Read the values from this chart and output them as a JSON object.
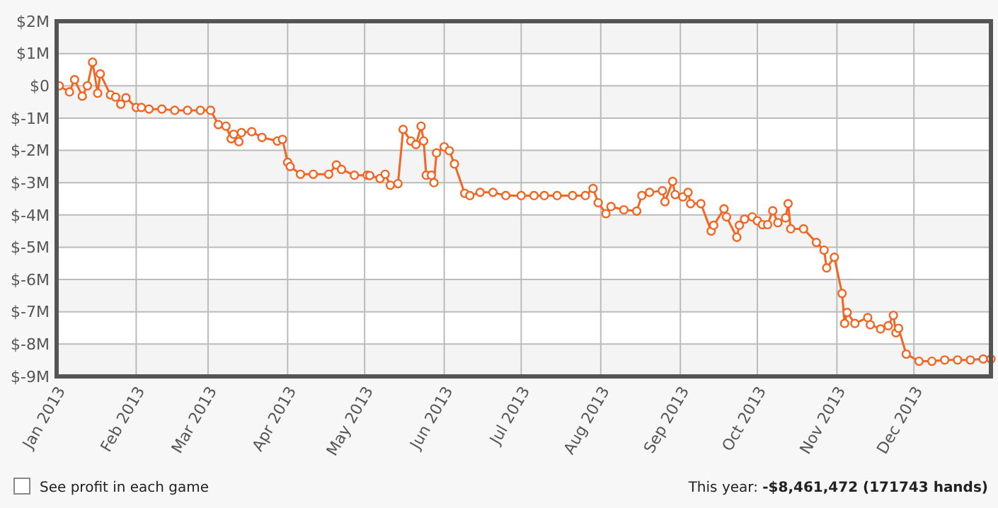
{
  "chart_data": {
    "type": "line",
    "x": [
      "2013-01-02",
      "2013-01-06",
      "2013-01-08",
      "2013-01-11",
      "2013-01-13",
      "2013-01-15",
      "2013-01-17",
      "2013-01-18",
      "2013-01-22",
      "2013-01-24",
      "2013-01-26",
      "2013-01-28",
      "2013-02-01",
      "2013-02-03",
      "2013-02-06",
      "2013-02-11",
      "2013-02-16",
      "2013-02-21",
      "2013-02-26",
      "2013-03-02",
      "2013-03-05",
      "2013-03-08",
      "2013-03-10",
      "2013-03-11",
      "2013-03-13",
      "2013-03-14",
      "2013-03-18",
      "2013-03-22",
      "2013-03-28",
      "2013-03-30",
      "2013-04-01",
      "2013-04-02",
      "2013-04-06",
      "2013-04-11",
      "2013-04-17",
      "2013-04-20",
      "2013-04-22",
      "2013-04-27",
      "2013-05-02",
      "2013-05-03",
      "2013-05-07",
      "2013-05-09",
      "2013-05-11",
      "2013-05-14",
      "2013-05-16",
      "2013-05-19",
      "2013-05-21",
      "2013-05-23",
      "2013-05-24",
      "2013-05-25",
      "2013-05-27",
      "2013-05-28",
      "2013-05-29",
      "2013-06-01",
      "2013-06-03",
      "2013-06-05",
      "2013-06-09",
      "2013-06-11",
      "2013-06-15",
      "2013-06-20",
      "2013-06-25",
      "2013-07-01",
      "2013-07-06",
      "2013-07-10",
      "2013-07-15",
      "2013-07-21",
      "2013-07-26",
      "2013-07-29",
      "2013-07-31",
      "2013-08-03",
      "2013-08-05",
      "2013-08-10",
      "2013-08-15",
      "2013-08-17",
      "2013-08-20",
      "2013-08-25",
      "2013-08-26",
      "2013-08-29",
      "2013-08-30",
      "2013-09-02",
      "2013-09-04",
      "2013-09-05",
      "2013-09-09",
      "2013-09-13",
      "2013-09-14",
      "2013-09-18",
      "2013-09-19",
      "2013-09-23",
      "2013-09-24",
      "2013-09-26",
      "2013-09-29",
      "2013-10-01",
      "2013-10-03",
      "2013-10-05",
      "2013-10-07",
      "2013-10-09",
      "2013-10-12",
      "2013-10-13",
      "2013-10-14",
      "2013-10-19",
      "2013-10-24",
      "2013-10-27",
      "2013-10-28",
      "2013-10-31",
      "2013-11-03",
      "2013-11-04",
      "2013-11-05",
      "2013-11-08",
      "2013-11-13",
      "2013-11-14",
      "2013-11-18",
      "2013-11-21",
      "2013-11-23",
      "2013-11-24",
      "2013-11-25",
      "2013-11-28",
      "2013-12-03",
      "2013-12-08",
      "2013-12-13",
      "2013-12-18",
      "2013-12-23",
      "2013-12-28",
      "2013-12-31"
    ],
    "series": [
      {
        "color": "#f26522",
        "values": [
          0,
          -0.19,
          0.19,
          -0.32,
          0,
          0.73,
          -0.23,
          0.37,
          -0.28,
          -0.35,
          -0.57,
          -0.37,
          -0.67,
          -0.67,
          -0.72,
          -0.72,
          -0.76,
          -0.76,
          -0.76,
          -0.76,
          -1.2,
          -1.25,
          -1.64,
          -1.5,
          -1.73,
          -1.45,
          -1.42,
          -1.6,
          -1.71,
          -1.66,
          -2.37,
          -2.5,
          -2.74,
          -2.74,
          -2.74,
          -2.45,
          -2.59,
          -2.77,
          -2.77,
          -2.78,
          -2.87,
          -2.74,
          -3.08,
          -3.03,
          -1.35,
          -1.71,
          -1.82,
          -1.25,
          -1.71,
          -2.77,
          -2.77,
          -3.0,
          -2.08,
          -1.89,
          -2.01,
          -2.42,
          -3.33,
          -3.4,
          -3.3,
          -3.3,
          -3.4,
          -3.4,
          -3.4,
          -3.4,
          -3.4,
          -3.4,
          -3.4,
          -3.18,
          -3.62,
          -3.96,
          -3.74,
          -3.84,
          -3.88,
          -3.4,
          -3.3,
          -3.25,
          -3.59,
          -2.96,
          -3.37,
          -3.44,
          -3.3,
          -3.65,
          -3.65,
          -4.5,
          -4.32,
          -3.81,
          -4.06,
          -4.69,
          -4.32,
          -4.13,
          -4.06,
          -4.18,
          -4.3,
          -4.3,
          -3.87,
          -4.24,
          -4.09,
          -3.65,
          -4.43,
          -4.43,
          -4.85,
          -5.09,
          -5.64,
          -5.31,
          -6.43,
          -7.36,
          -7.02,
          -7.36,
          -7.18,
          -7.4,
          -7.53,
          -7.43,
          -7.11,
          -7.65,
          -7.51,
          -8.31,
          -8.53,
          -8.53,
          -8.49,
          -8.49,
          -8.49,
          -8.46,
          -8.46
        ]
      }
    ],
    "xlim": [
      "2013-01-01",
      "2013-12-31"
    ],
    "xticks": [
      {
        "value": "2013-01-01",
        "label": "Jan 2013"
      },
      {
        "value": "2013-02-01",
        "label": "Feb 2013"
      },
      {
        "value": "2013-03-01",
        "label": "Mar 2013"
      },
      {
        "value": "2013-04-01",
        "label": "Apr 2013"
      },
      {
        "value": "2013-05-01",
        "label": "May 2013"
      },
      {
        "value": "2013-06-01",
        "label": "Jun 2013"
      },
      {
        "value": "2013-07-01",
        "label": "Jul 2013"
      },
      {
        "value": "2013-08-01",
        "label": "Aug 2013"
      },
      {
        "value": "2013-09-01",
        "label": "Sep 2013"
      },
      {
        "value": "2013-10-01",
        "label": "Oct 2013"
      },
      {
        "value": "2013-11-01",
        "label": "Nov 2013"
      },
      {
        "value": "2013-12-01",
        "label": "Dec 2013"
      }
    ],
    "ylim": [
      -9,
      2
    ],
    "yticks": [
      {
        "value": 2,
        "label": "$2M"
      },
      {
        "value": 1,
        "label": "$1M"
      },
      {
        "value": 0,
        "label": "$0"
      },
      {
        "value": -1,
        "label": "$-1M"
      },
      {
        "value": -2,
        "label": "$-2M"
      },
      {
        "value": -3,
        "label": "$-3M"
      },
      {
        "value": -4,
        "label": "$-4M"
      },
      {
        "value": -5,
        "label": "$-5M"
      },
      {
        "value": -6,
        "label": "$-6M"
      },
      {
        "value": -7,
        "label": "$-7M"
      },
      {
        "value": -8,
        "label": "$-8M"
      },
      {
        "value": -9,
        "label": "$-9M"
      }
    ],
    "grid": true,
    "marker": "circle",
    "line_style": "solid",
    "annotations": [
      "See profit in each game",
      "This year: -$8,461,472 (171743 hands)"
    ]
  }
}
